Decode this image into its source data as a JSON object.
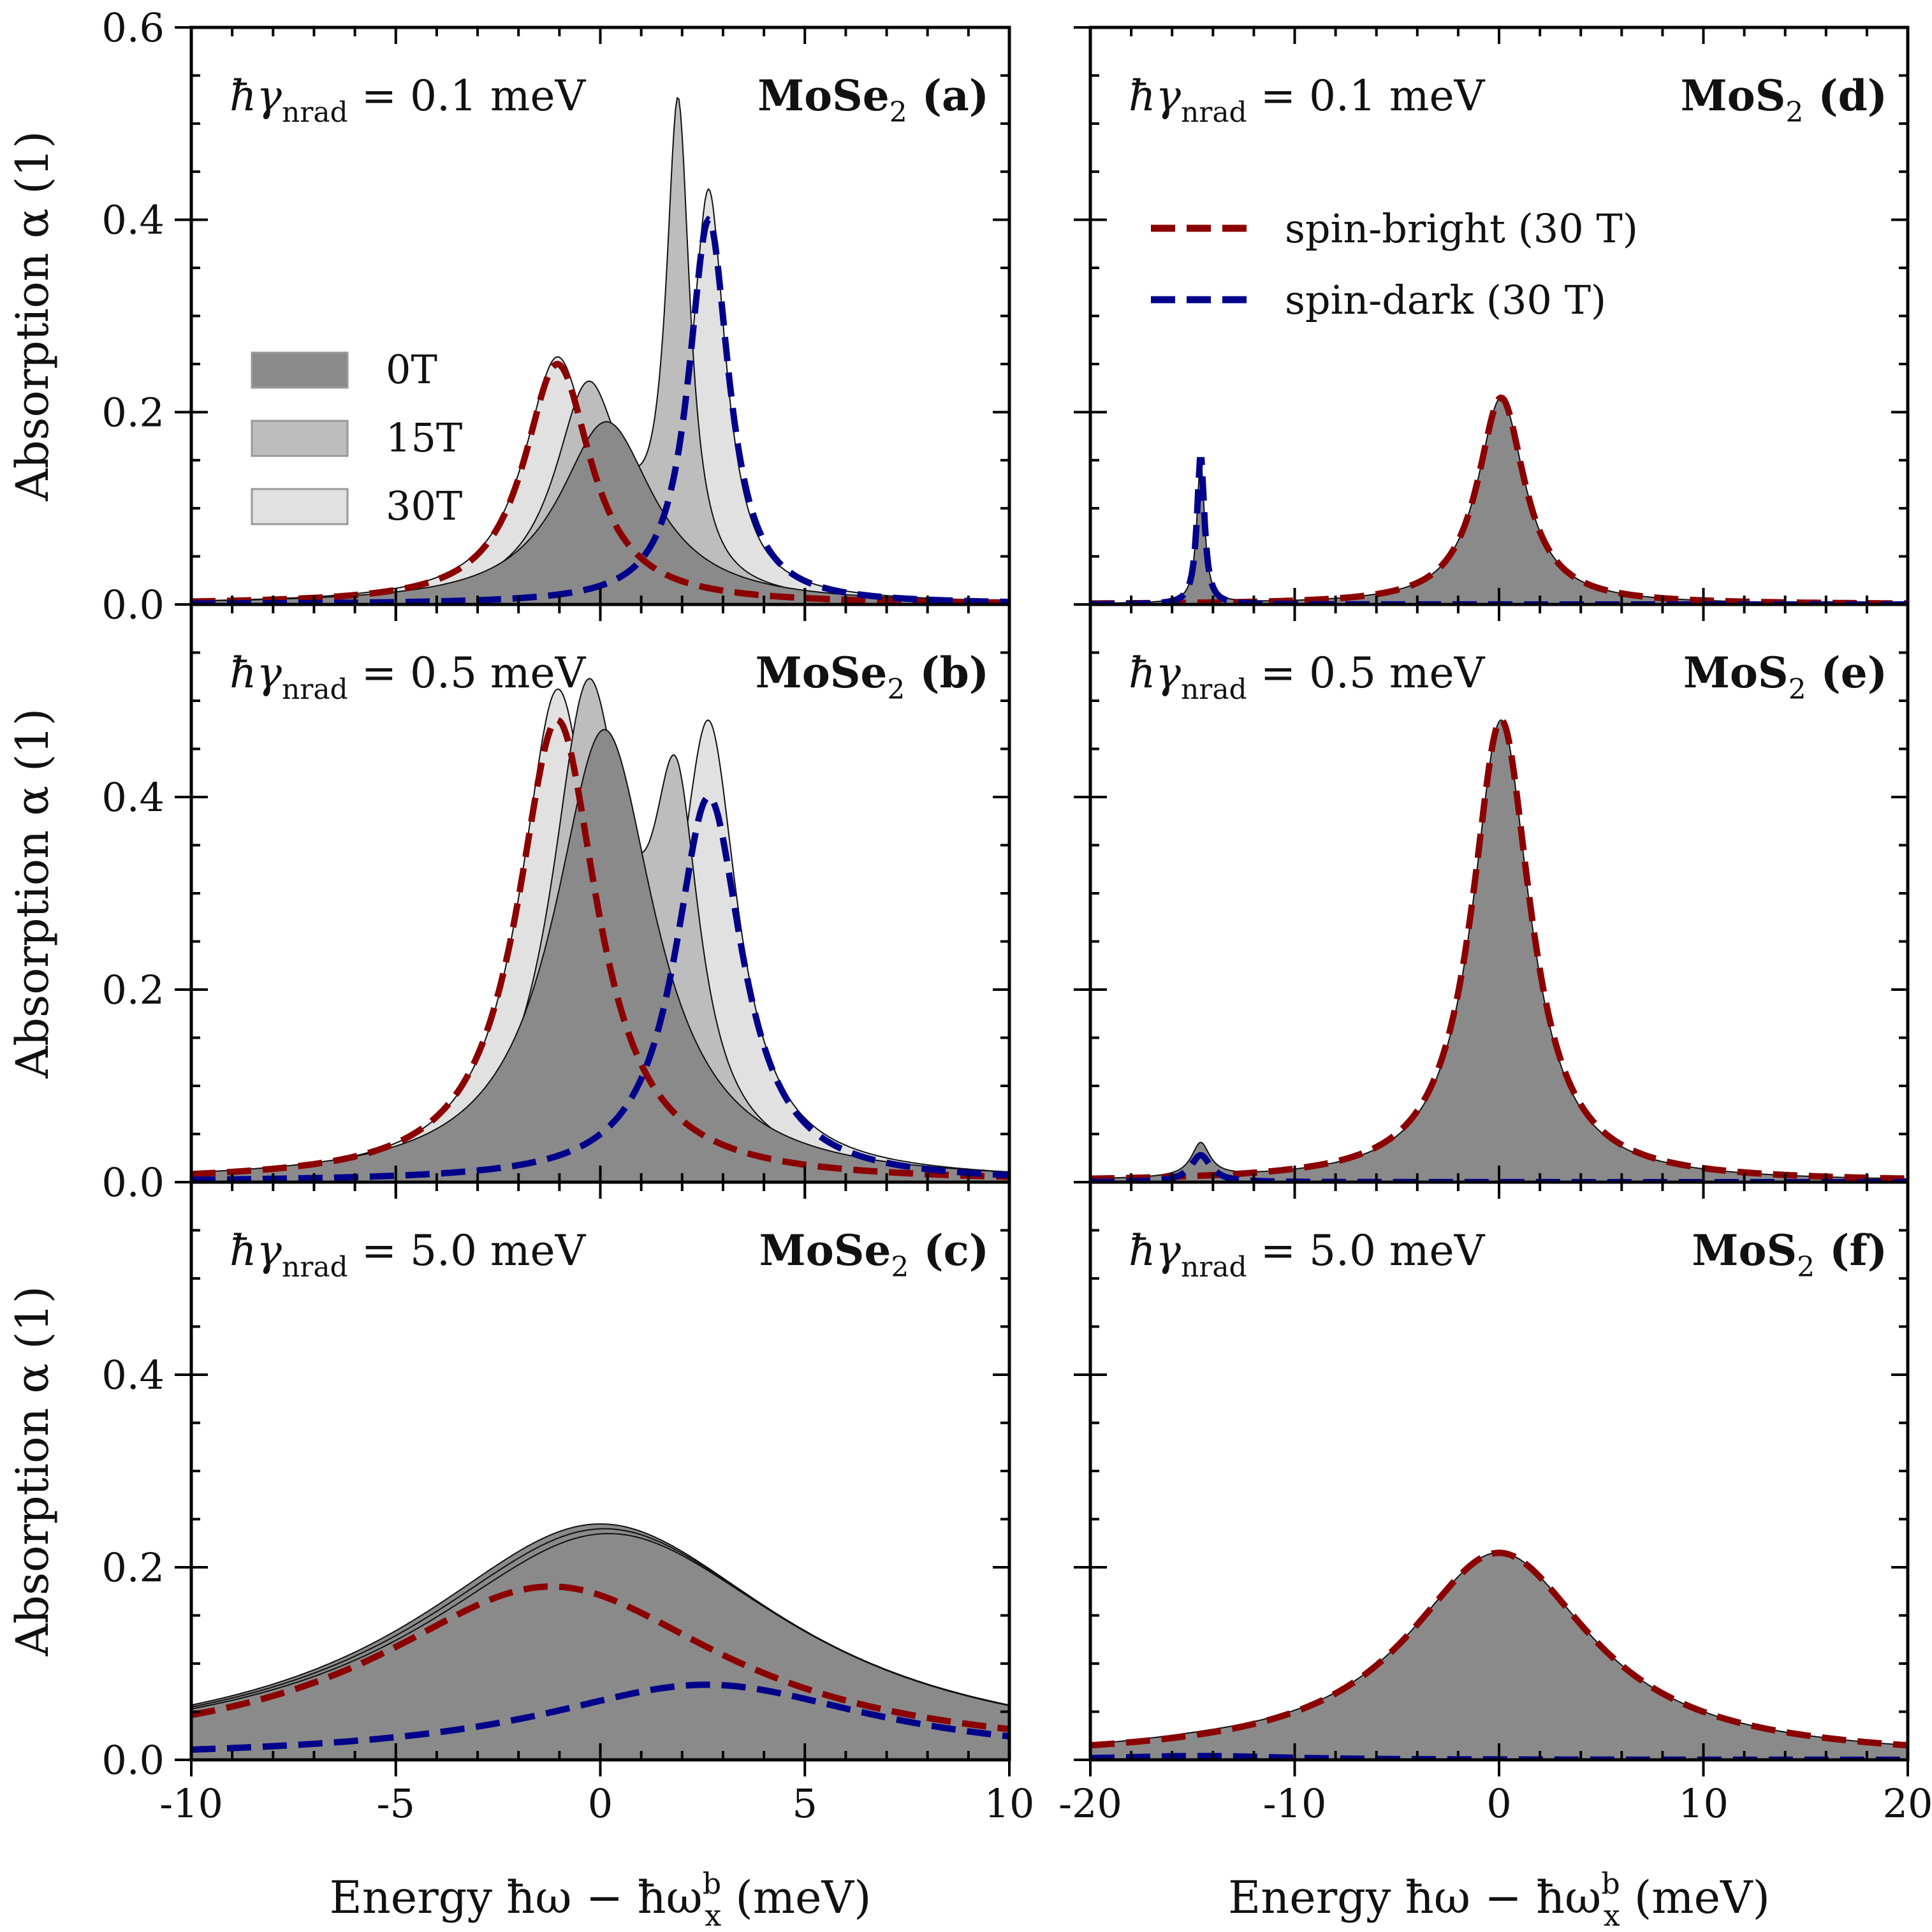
{
  "chart_data": [
    {
      "id": "a",
      "type": "area",
      "material": "MoSe",
      "material_sub": "2",
      "tag": "(a)",
      "gamma_value": "0.1 meV",
      "xlim": [
        -10,
        10
      ],
      "ylim": [
        0,
        0.6
      ],
      "xticks": [
        -10,
        -5,
        0,
        5,
        10
      ],
      "yticks": [
        "0.0",
        "0.2",
        "0.4",
        "0.6"
      ],
      "ylabel": "Absorption α (1)",
      "legend": [
        {
          "label": "0T",
          "color": "#8a8a8a"
        },
        {
          "label": "15T",
          "color": "#bdbdbd"
        },
        {
          "label": "30T",
          "color": "#e1e1e1"
        }
      ],
      "filled": [
        {
          "name": "30T",
          "color": "#e1e1e1",
          "peaks": [
            [
              -1.05,
              0.25,
              1.0
            ],
            [
              2.65,
              0.415,
              0.5
            ]
          ]
        },
        {
          "name": "15T",
          "color": "#bdbdbd",
          "peaks": [
            [
              -0.3,
              0.22,
              1.0
            ],
            [
              1.9,
              0.49,
              0.35
            ]
          ]
        },
        {
          "name": "0T",
          "color": "#8a8a8a",
          "peaks": [
            [
              0.15,
              0.19,
              1.4
            ]
          ]
        }
      ],
      "dashed": [
        {
          "name": "spin-bright (30 T)",
          "color": "#8b0000",
          "peaks": [
            [
              -1.05,
              0.25,
              1.0
            ]
          ]
        },
        {
          "name": "spin-dark (30 T)",
          "color": "#00008b",
          "peaks": [
            [
              2.65,
              0.4,
              0.6
            ]
          ]
        }
      ]
    },
    {
      "id": "b",
      "type": "area",
      "material": "MoSe",
      "material_sub": "2",
      "tag": "(b)",
      "gamma_value": "0.5 meV",
      "xlim": [
        -10,
        10
      ],
      "ylim": [
        0,
        0.6
      ],
      "xticks": [
        -10,
        -5,
        0,
        5,
        10
      ],
      "yticks": [
        "0.0",
        "0.2",
        "0.4",
        ""
      ],
      "ylabel": "Absorption α (1)",
      "filled": [
        {
          "name": "30T",
          "color": "#e1e1e1",
          "peaks": [
            [
              -1.05,
              0.49,
              1.1
            ],
            [
              2.65,
              0.44,
              0.85
            ]
          ]
        },
        {
          "name": "15T",
          "color": "#bdbdbd",
          "peaks": [
            [
              -0.3,
              0.49,
              1.1
            ],
            [
              1.85,
              0.34,
              0.7
            ]
          ]
        },
        {
          "name": "0T",
          "color": "#8a8a8a",
          "peaks": [
            [
              0.1,
              0.47,
              1.5
            ]
          ]
        }
      ],
      "dashed": [
        {
          "name": "spin-bright (30 T)",
          "color": "#8b0000",
          "peaks": [
            [
              -1.05,
              0.48,
              1.2
            ]
          ]
        },
        {
          "name": "spin-dark (30 T)",
          "color": "#00008b",
          "peaks": [
            [
              2.65,
              0.4,
              1.0
            ]
          ]
        }
      ]
    },
    {
      "id": "c",
      "type": "area",
      "material": "MoSe",
      "material_sub": "2",
      "tag": "(c)",
      "gamma_value": "5.0 meV",
      "xlim": [
        -10,
        10
      ],
      "ylim": [
        0,
        0.6
      ],
      "xticks": [
        -10,
        -5,
        0,
        5,
        10
      ],
      "yticks": [
        "0.0",
        "0.2",
        "0.4",
        ""
      ],
      "ylabel": "Absorption α (1)",
      "xlabel": "Energy ħω − ħω",
      "xlabel_sup": "b",
      "xlabel_sub": "x",
      "xlabel_unit": "(meV)",
      "filled": [
        {
          "name": "30T",
          "color": "#8a8a8a",
          "peaks": [
            [
              0.0,
              0.245,
              5.5
            ]
          ]
        },
        {
          "name": "15T",
          "color": "#8a8a8a",
          "peaks": [
            [
              0.1,
              0.24,
              5.5
            ]
          ]
        },
        {
          "name": "0T",
          "color": "#8a8a8a",
          "peaks": [
            [
              0.2,
              0.235,
              5.5
            ]
          ]
        }
      ],
      "dashed": [
        {
          "name": "spin-bright (30 T)",
          "color": "#8b0000",
          "peaks": [
            [
              -1.2,
              0.18,
              5.2
            ]
          ]
        },
        {
          "name": "spin-dark (30 T)",
          "color": "#00008b",
          "peaks": [
            [
              2.6,
              0.078,
              5.0
            ]
          ]
        }
      ]
    },
    {
      "id": "d",
      "type": "area",
      "material": "MoS",
      "material_sub": "2",
      "tag": "(d)",
      "gamma_value": "0.1 meV",
      "xlim": [
        -20,
        20
      ],
      "ylim": [
        0,
        0.6
      ],
      "xticks": [
        -20,
        -10,
        0,
        10,
        20
      ],
      "yticks": [],
      "legend_dashed": [
        {
          "label": "spin-bright (30 T)",
          "color": "#8b0000"
        },
        {
          "label": "spin-dark (30 T)",
          "color": "#00008b"
        }
      ],
      "filled": [
        {
          "name": "30T",
          "color": "#8a8a8a",
          "peaks": [
            [
              0.1,
              0.215,
              1.4
            ],
            [
              -14.6,
              0.15,
              0.22
            ]
          ]
        }
      ],
      "dashed": [
        {
          "name": "spin-bright (30 T)",
          "color": "#8b0000",
          "peaks": [
            [
              0.1,
              0.215,
              1.4
            ]
          ]
        },
        {
          "name": "spin-dark (30 T)",
          "color": "#00008b",
          "peaks": [
            [
              -14.6,
              0.155,
              0.22
            ]
          ]
        }
      ]
    },
    {
      "id": "e",
      "type": "area",
      "material": "MoS",
      "material_sub": "2",
      "tag": "(e)",
      "gamma_value": "0.5 meV",
      "xlim": [
        -20,
        20
      ],
      "ylim": [
        0,
        0.6
      ],
      "xticks": [
        -20,
        -10,
        0,
        10,
        20
      ],
      "yticks": [],
      "filled": [
        {
          "name": "30T",
          "color": "#8a8a8a",
          "peaks": [
            [
              0.1,
              0.48,
              1.7
            ],
            [
              -14.6,
              0.035,
              0.55
            ]
          ]
        }
      ],
      "dashed": [
        {
          "name": "spin-bright (30 T)",
          "color": "#8b0000",
          "peaks": [
            [
              0.1,
              0.48,
              1.75
            ]
          ]
        },
        {
          "name": "spin-dark (30 T)",
          "color": "#00008b",
          "peaks": [
            [
              -14.6,
              0.028,
              0.6
            ]
          ]
        }
      ]
    },
    {
      "id": "f",
      "type": "area",
      "material": "MoS",
      "material_sub": "2",
      "tag": "(f)",
      "gamma_value": "5.0 meV",
      "xlim": [
        -20,
        20
      ],
      "ylim": [
        0,
        0.6
      ],
      "xticks": [
        -20,
        -10,
        0,
        10,
        20
      ],
      "yticks": [],
      "xlabel": "Energy ħω − ħω",
      "xlabel_sup": "b",
      "xlabel_sub": "x",
      "xlabel_unit": "(meV)",
      "filled": [
        {
          "name": "30T",
          "color": "#8a8a8a",
          "peaks": [
            [
              0.0,
              0.215,
              5.5
            ],
            [
              -14.6,
              0.003,
              5.0
            ]
          ]
        }
      ],
      "dashed": [
        {
          "name": "spin-bright (30 T)",
          "color": "#8b0000",
          "peaks": [
            [
              0.0,
              0.215,
              5.5
            ]
          ]
        },
        {
          "name": "spin-dark (30 T)",
          "color": "#00008b",
          "peaks": [
            [
              -14.6,
              0.004,
              5.0
            ]
          ]
        }
      ]
    }
  ]
}
